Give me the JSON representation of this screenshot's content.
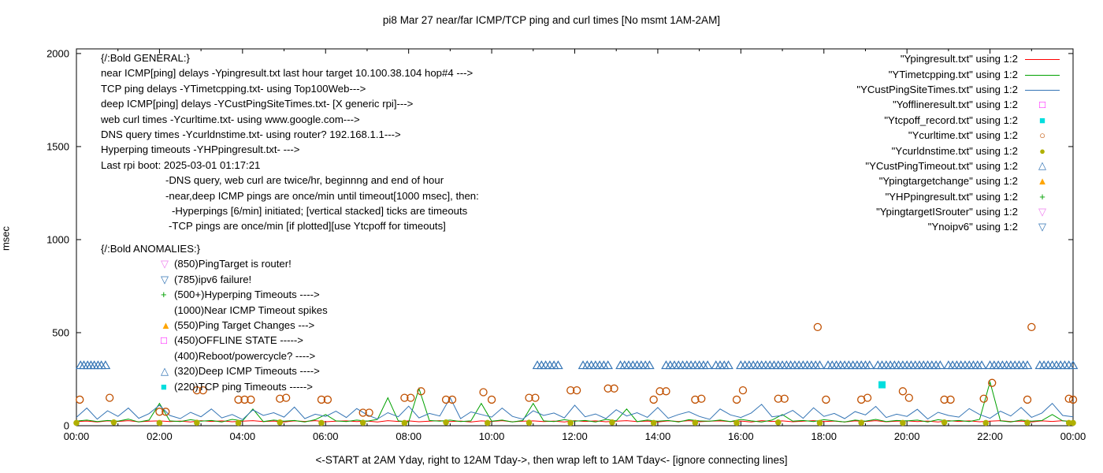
{
  "title": "pi8 Mar 27  near/far ICMP/TCP ping and curl times [No msmt 1AM-2AM]",
  "ylabel": "msec",
  "xlabel": "<-START at 2AM Yday, right to 12AM Tday->, then wrap left to 1AM Tday<- [ignore connecting lines]",
  "legend": [
    {
      "label": "\"Ypingresult.txt\" using 1:2",
      "marker": "line",
      "color": "#ff0000"
    },
    {
      "label": "\"YTimetcpping.txt\" using 1:2",
      "marker": "line",
      "color": "#00a000"
    },
    {
      "label": "\"YCustPingSiteTimes.txt\" using 1:2",
      "marker": "line",
      "color": "#3575b5"
    },
    {
      "label": "\"Yofflineresult.txt\" using 1:2",
      "marker": "square-open",
      "color": "#ff00ff"
    },
    {
      "label": "\"Ytcpoff_record.txt\" using 1:2",
      "marker": "square-filled",
      "color": "#00dede"
    },
    {
      "label": "\"Ycurltime.txt\" using 1:2",
      "marker": "circle-open",
      "color": "#c05000"
    },
    {
      "label": "\"Ycurldnstime.txt\" using 1:2",
      "marker": "circle-filled",
      "color": "#b0b000"
    },
    {
      "label": "\"YCustPingTimeout.txt\" using 1:2",
      "marker": "triangle-up-open",
      "color": "#3575b5"
    },
    {
      "label": "\"Ypingtargetchange\" using 1:2",
      "marker": "triangle-up-filled",
      "color": "#ffa500"
    },
    {
      "label": "\"YHPpingresult.txt\" using 1:2",
      "marker": "plus",
      "color": "#00a000"
    },
    {
      "label": "\"YpingtargetISrouter\" using 1:2",
      "marker": "triangle-down-open",
      "color": "#ee82ee"
    },
    {
      "label": "\"Ynoipv6\" using 1:2",
      "marker": "triangle-down-open",
      "color": "#3575b5"
    }
  ],
  "general": {
    "lines": [
      {
        "text": "{/:Bold GENERAL:}",
        "indent": 0
      },
      {
        "text": "near ICMP[ping] delays -Ypingresult.txt last hour target 10.100.38.104 hop#4 --->",
        "indent": 0
      },
      {
        "text": "TCP ping delays -YTimetcpping.txt- using Top100Web--->",
        "indent": 0
      },
      {
        "text": "deep ICMP[ping] delays -YCustPingSiteTimes.txt- [X generic rpi]--->",
        "indent": 0
      },
      {
        "text": "web curl times -Ycurltime.txt- using www.google.com--->",
        "indent": 0
      },
      {
        "text": "DNS query times -Ycurldnstime.txt- using router? 192.168.1.1--->",
        "indent": 0
      },
      {
        "text": "Hyperping timeouts -YHPpingresult.txt- --->",
        "indent": 0
      },
      {
        "text": "Last rpi boot: 2025-03-01 01:17:21",
        "indent": 0
      },
      {
        "text": "-DNS query, web curl are twice/hr, beginnng and end of hour",
        "indent": 82
      },
      {
        "text": "-near,deep ICMP pings are once/min until timeout[1000 msec], then:",
        "indent": 82
      },
      {
        "text": "-Hyperpings [6/min] initiated; [vertical stacked] ticks are timeouts",
        "indent": 90
      },
      {
        "text": "-TCP pings are once/min [if plotted][use Ytcpoff for timeouts]",
        "indent": 86
      }
    ]
  },
  "anomalies": {
    "lines": [
      {
        "marker": null,
        "color": null,
        "text": "{/:Bold ANOMALIES:}",
        "header": true
      },
      {
        "marker": "triangle-down-open",
        "color": "#ee82ee",
        "text": "(850)PingTarget is router!"
      },
      {
        "marker": "triangle-down-open",
        "color": "#3575b5",
        "text": "(785)ipv6 failure!"
      },
      {
        "marker": "plus",
        "color": "#00a000",
        "text": "(500+)Hyperping Timeouts ---->"
      },
      {
        "marker": null,
        "color": null,
        "text": "(1000)Near ICMP Timeout spikes"
      },
      {
        "marker": "triangle-up-filled",
        "color": "#ffa500",
        "text": "(550)Ping Target Changes --->"
      },
      {
        "marker": "square-open",
        "color": "#ff00ff",
        "text": "(450)OFFLINE STATE ----->"
      },
      {
        "marker": null,
        "color": null,
        "text": "(400)Reboot/powercycle? ---->"
      },
      {
        "marker": "triangle-up-open",
        "color": "#3575b5",
        "text": "(320)Deep ICMP Timeouts ---->"
      },
      {
        "marker": "square-filled",
        "color": "#00dede",
        "text": "(220)TCP ping Timeouts ----->"
      }
    ]
  },
  "chart_data": {
    "type": "line",
    "title": "pi8 Mar 27  near/far ICMP/TCP ping and curl times [No msmt 1AM-2AM]",
    "xlabel": "<-START at 2AM Yday, right to 12AM Tday->, then wrap left to 1AM Tday<- [ignore connecting lines]",
    "ylabel": "msec",
    "x_axis": {
      "range_hours": [
        0,
        24
      ],
      "tick_hours": [
        0,
        2,
        4,
        6,
        8,
        10,
        12,
        14,
        16,
        18,
        20,
        22,
        24
      ],
      "tick_labels": [
        "00:00",
        "02:00",
        "04:00",
        "06:00",
        "08:00",
        "10:00",
        "12:00",
        "14:00",
        "16:00",
        "18:00",
        "20:00",
        "22:00",
        "00:00"
      ]
    },
    "y_axis": {
      "range": [
        0,
        2025
      ],
      "ticks": [
        0,
        500,
        1000,
        1500,
        2000
      ],
      "label": "msec"
    },
    "sample_interval_hours": 0.25,
    "line_series": [
      {
        "name": "Ypingresult.txt",
        "color": "#ff0000",
        "values": [
          22,
          25,
          20,
          26,
          23,
          27,
          21,
          24,
          26,
          22,
          25,
          20,
          27,
          23,
          26,
          21,
          24,
          27,
          22,
          25,
          20,
          26,
          23,
          27,
          21,
          24,
          26,
          22,
          25,
          20,
          27,
          23,
          26,
          21,
          24,
          27,
          22,
          25,
          20,
          26,
          23,
          27,
          21,
          24,
          26,
          22,
          25,
          20,
          27,
          23,
          26,
          21,
          24,
          27,
          22,
          25,
          20,
          26,
          23,
          27,
          21,
          24,
          26,
          22,
          25,
          20,
          27,
          23,
          26,
          21,
          24,
          27,
          22,
          25,
          20,
          26,
          23,
          27,
          21,
          24,
          26,
          22,
          25,
          20,
          27,
          23,
          26,
          21,
          24,
          27,
          22,
          25,
          20,
          26,
          23,
          27,
          21
        ]
      },
      {
        "name": "YTimetcpping.txt",
        "color": "#00a000",
        "values": [
          25,
          30,
          22,
          28,
          24,
          35,
          20,
          30,
          120,
          26,
          22,
          32,
          24,
          28,
          20,
          34,
          26,
          90,
          22,
          30,
          24,
          28,
          20,
          32,
          60,
          26,
          22,
          30,
          24,
          34,
          150,
          26,
          20,
          200,
          28,
          24,
          30,
          22,
          26,
          120,
          24,
          30,
          20,
          28,
          120,
          26,
          22,
          32,
          24,
          28,
          20,
          34,
          26,
          90,
          22,
          30,
          24,
          28,
          20,
          32,
          26,
          24,
          30,
          22,
          34,
          26,
          20,
          30,
          60,
          24,
          28,
          22,
          32,
          26,
          20,
          30,
          24,
          34,
          22,
          28,
          26,
          30,
          20,
          32,
          24,
          28,
          22,
          34,
          235,
          26,
          20,
          30,
          24,
          28,
          60,
          26,
          22
        ]
      },
      {
        "name": "YCustPingSiteTimes.txt",
        "color": "#3575b5",
        "values": [
          45,
          95,
          35,
          80,
          50,
          95,
          40,
          65,
          110,
          55,
          38,
          72,
          48,
          90,
          42,
          60,
          33,
          85,
          55,
          70,
          46,
          100,
          38,
          62,
          50,
          78,
          44,
          92,
          58,
          36,
          70,
          48,
          105,
          42,
          66,
          52,
          150,
          38,
          74,
          60,
          46,
          95,
          50,
          35,
          80,
          55,
          68,
          42,
          110,
          48,
          63,
          38,
          86,
          52,
          70,
          45,
          98,
          40,
          60,
          75,
          50,
          34,
          90,
          58,
          44,
          68,
          115,
          48,
          55,
          82,
          40,
          96,
          50,
          66,
          38,
          76,
          58,
          104,
          44,
          62,
          50,
          88,
          36,
          72,
          55,
          46,
          92,
          60,
          40,
          78,
          52,
          98,
          45,
          68,
          120,
          55,
          48
        ]
      }
    ],
    "point_series": [
      {
        "name": "Ycurltime.txt",
        "marker": "circle-open",
        "color": "#c05000",
        "points": [
          [
            0.08,
            140
          ],
          [
            0.8,
            150
          ],
          [
            2.0,
            75
          ],
          [
            2.15,
            75
          ],
          [
            2.9,
            190
          ],
          [
            3.05,
            190
          ],
          [
            3.9,
            140
          ],
          [
            4.05,
            140
          ],
          [
            4.2,
            140
          ],
          [
            4.9,
            145
          ],
          [
            5.05,
            150
          ],
          [
            5.9,
            140
          ],
          [
            6.05,
            140
          ],
          [
            6.9,
            70
          ],
          [
            7.05,
            70
          ],
          [
            7.9,
            150
          ],
          [
            8.05,
            150
          ],
          [
            8.3,
            185
          ],
          [
            8.9,
            140
          ],
          [
            9.05,
            140
          ],
          [
            9.8,
            180
          ],
          [
            10.0,
            140
          ],
          [
            10.9,
            150
          ],
          [
            11.05,
            150
          ],
          [
            11.9,
            190
          ],
          [
            12.05,
            190
          ],
          [
            12.8,
            200
          ],
          [
            12.95,
            200
          ],
          [
            13.9,
            140
          ],
          [
            14.05,
            185
          ],
          [
            14.2,
            185
          ],
          [
            14.9,
            140
          ],
          [
            15.05,
            145
          ],
          [
            15.9,
            140
          ],
          [
            16.05,
            190
          ],
          [
            16.9,
            145
          ],
          [
            17.05,
            145
          ],
          [
            17.85,
            530
          ],
          [
            18.05,
            140
          ],
          [
            18.9,
            140
          ],
          [
            19.05,
            150
          ],
          [
            19.9,
            185
          ],
          [
            20.05,
            150
          ],
          [
            20.9,
            140
          ],
          [
            21.05,
            140
          ],
          [
            21.85,
            145
          ],
          [
            22.05,
            230
          ],
          [
            22.9,
            140
          ],
          [
            23.0,
            530
          ],
          [
            23.9,
            145
          ],
          [
            24.0,
            140
          ]
        ]
      },
      {
        "name": "Ycurldnstime.txt",
        "marker": "circle-filled",
        "color": "#b0b000",
        "points": [
          [
            0,
            15
          ],
          [
            0.9,
            18
          ],
          [
            2,
            15
          ],
          [
            2.9,
            16
          ],
          [
            3.9,
            15
          ],
          [
            4.9,
            18
          ],
          [
            5.9,
            15
          ],
          [
            6.9,
            16
          ],
          [
            7.9,
            15
          ],
          [
            8.9,
            18
          ],
          [
            9.9,
            15
          ],
          [
            10.9,
            16
          ],
          [
            11.9,
            15
          ],
          [
            12.9,
            18
          ],
          [
            13.9,
            15
          ],
          [
            14.9,
            16
          ],
          [
            15.9,
            15
          ],
          [
            16.9,
            18
          ],
          [
            17.9,
            15
          ],
          [
            18.9,
            16
          ],
          [
            19.9,
            15
          ],
          [
            20.9,
            18
          ],
          [
            21.9,
            15
          ],
          [
            22.9,
            16
          ],
          [
            23.9,
            15
          ],
          [
            24,
            15
          ]
        ]
      },
      {
        "name": "YCustPingTimeout.txt",
        "marker": "triangle-up-open",
        "color": "#3575b5",
        "value": 325,
        "times": [
          0.1,
          0.18,
          0.27,
          0.35,
          0.43,
          0.52,
          0.6,
          0.7,
          11.1,
          11.2,
          11.3,
          11.4,
          11.5,
          11.6,
          12.2,
          12.3,
          12.4,
          12.5,
          12.6,
          12.7,
          12.8,
          13.1,
          13.2,
          13.3,
          13.4,
          13.5,
          13.6,
          13.7,
          13.8,
          14.2,
          14.3,
          14.4,
          14.5,
          14.6,
          14.7,
          14.8,
          14.9,
          15.0,
          15.1,
          15.2,
          15.4,
          15.5,
          15.6,
          15.7,
          16.0,
          16.1,
          16.2,
          16.3,
          16.4,
          16.5,
          16.6,
          16.7,
          16.8,
          16.9,
          17.0,
          17.1,
          17.2,
          17.3,
          17.4,
          17.5,
          17.6,
          17.7,
          17.8,
          17.9,
          18.1,
          18.2,
          18.3,
          18.4,
          18.5,
          18.6,
          18.7,
          18.8,
          18.9,
          19.0,
          19.1,
          19.3,
          19.4,
          19.5,
          19.6,
          19.7,
          19.8,
          19.9,
          20.0,
          20.1,
          20.2,
          20.3,
          20.4,
          20.5,
          20.6,
          20.7,
          20.8,
          21.0,
          21.1,
          21.2,
          21.3,
          21.4,
          21.5,
          21.6,
          21.7,
          21.8,
          22.0,
          22.1,
          22.2,
          22.3,
          22.4,
          22.5,
          22.6,
          22.7,
          22.8,
          22.9,
          23.2,
          23.3,
          23.4,
          23.5,
          23.6,
          23.7,
          23.8,
          23.9,
          24.0
        ]
      },
      {
        "name": "Ytcpoff_record.txt",
        "marker": "square-filled",
        "color": "#00dede",
        "points": [
          [
            19.4,
            220
          ]
        ]
      }
    ]
  }
}
